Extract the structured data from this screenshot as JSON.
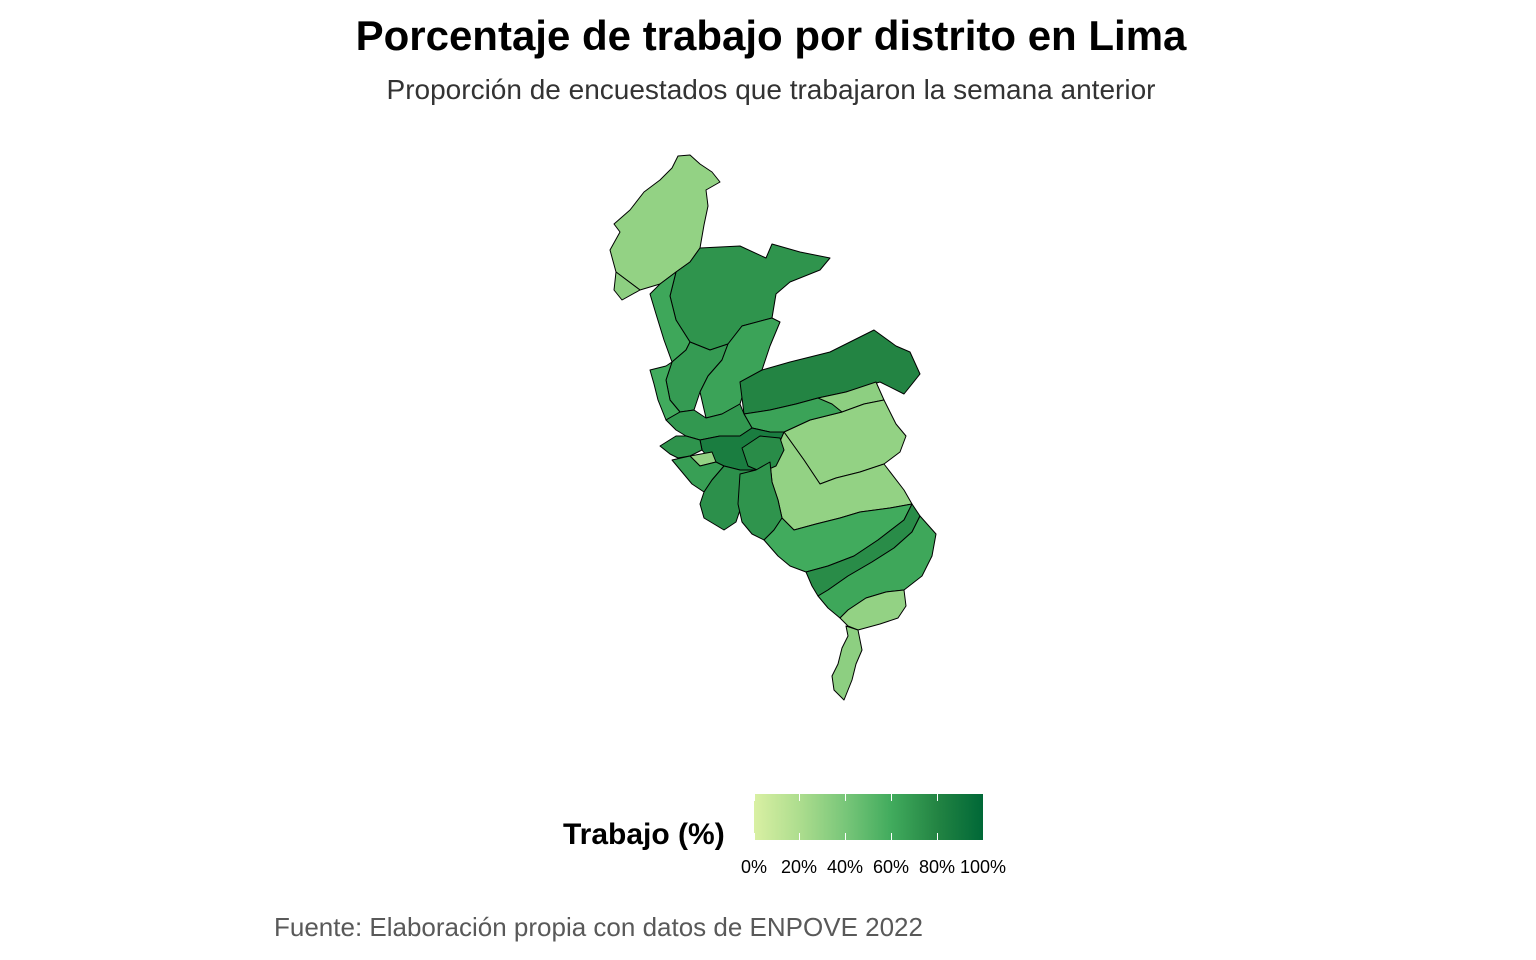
{
  "title": "Porcentaje de trabajo por distrito en Lima",
  "subtitle": "Proporción de encuestados que trabajaron la semana anterior",
  "legend": {
    "title": "Trabajo (%)",
    "labels": [
      "0%",
      "20%",
      "40%",
      "60%",
      "80%",
      "100%"
    ],
    "colors": [
      "#d9f0a3",
      "#addd8e",
      "#78c679",
      "#41ab5d",
      "#238443",
      "#006837"
    ]
  },
  "caption": "Fuente: Elaboración propia con datos de ENPOVE 2022",
  "chart_data": {
    "type": "choropleth",
    "scale": {
      "min": 0,
      "max": 100,
      "unit": "%"
    },
    "regions": [
      {
        "id": "norte-1",
        "value": 30
      },
      {
        "id": "norte-2",
        "value": 32
      },
      {
        "id": "norte-3",
        "value": 72
      },
      {
        "id": "norte-4",
        "value": 62
      },
      {
        "id": "norte-5",
        "value": 68
      },
      {
        "id": "norte-6",
        "value": 64
      },
      {
        "id": "norte-7",
        "value": 60
      },
      {
        "id": "este-1",
        "value": 80
      },
      {
        "id": "este-2",
        "value": 32
      },
      {
        "id": "este-3",
        "value": 30
      },
      {
        "id": "este-4",
        "value": 64
      },
      {
        "id": "este-5",
        "value": 30
      },
      {
        "id": "centro-1",
        "value": 70
      },
      {
        "id": "centro-2",
        "value": 85
      },
      {
        "id": "centro-3",
        "value": 76
      },
      {
        "id": "centro-4",
        "value": 32
      },
      {
        "id": "centro-5",
        "value": 30
      },
      {
        "id": "centro-6",
        "value": 72
      },
      {
        "id": "centro-7",
        "value": 66
      },
      {
        "id": "sur-1",
        "value": 74
      },
      {
        "id": "sur-2",
        "value": 72
      },
      {
        "id": "sur-3",
        "value": 60
      },
      {
        "id": "sur-4",
        "value": 76
      },
      {
        "id": "sur-5",
        "value": 62
      },
      {
        "id": "sur-6",
        "value": 30
      },
      {
        "id": "sur-7",
        "value": 32
      }
    ]
  }
}
